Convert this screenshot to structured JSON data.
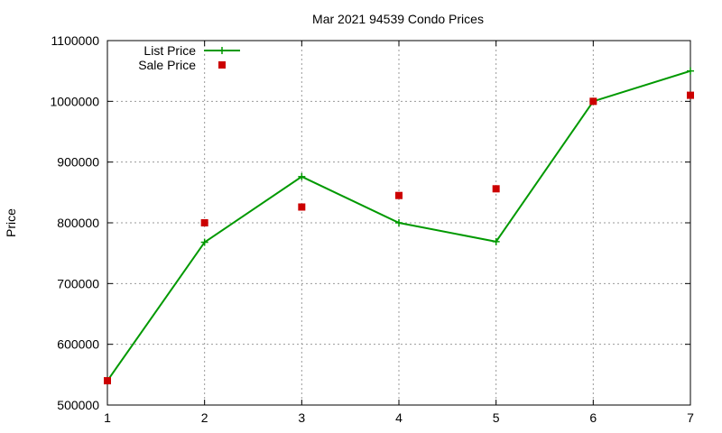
{
  "chart_data": {
    "type": "line",
    "title": "Mar 2021 94539 Condo Prices",
    "xlabel": "",
    "ylabel": "Price",
    "x": [
      1,
      2,
      3,
      4,
      5,
      6,
      7
    ],
    "xlim": [
      1,
      7
    ],
    "ylim": [
      500000,
      1100000
    ],
    "xticks": [
      1,
      2,
      3,
      4,
      5,
      6,
      7
    ],
    "yticks": [
      500000,
      600000,
      700000,
      800000,
      900000,
      1000000,
      1100000
    ],
    "grid": true,
    "legend_position": "top-left",
    "series": [
      {
        "name": "List Price",
        "style": "line-points",
        "marker": "plus",
        "color": "#009900",
        "values": [
          540000,
          768000,
          876000,
          800000,
          769000,
          1000000,
          1050000
        ]
      },
      {
        "name": "Sale Price",
        "style": "points",
        "marker": "square",
        "color": "#cc0000",
        "values": [
          540000,
          800000,
          826000,
          845000,
          856000,
          1000000,
          1010000
        ]
      }
    ]
  }
}
